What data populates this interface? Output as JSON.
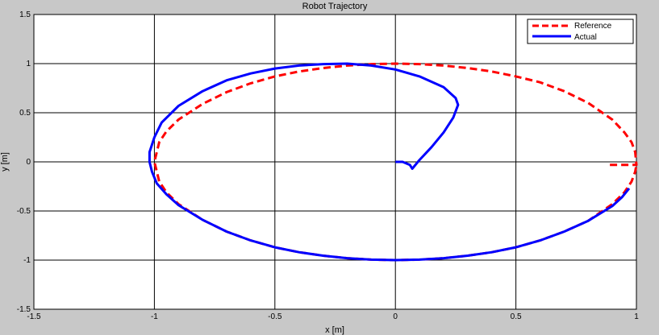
{
  "chart_data": {
    "type": "line",
    "title": "Robot Trajectory",
    "xlabel": "x [m]",
    "ylabel": "y [m]",
    "xlim": [
      -1.5,
      1
    ],
    "ylim": [
      -1.5,
      1.5
    ],
    "xticks": [
      -1.5,
      -1,
      -0.5,
      0,
      0.5,
      1
    ],
    "xtick_labels": [
      "-1.5",
      "-1",
      "-0.5",
      "0",
      "0.5",
      "1"
    ],
    "yticks": [
      -1.5,
      -1,
      -0.5,
      0,
      0.5,
      1,
      1.5
    ],
    "ytick_labels": [
      "-1.5",
      "-1",
      "-0.5",
      "0",
      "0.5",
      "1",
      "1.5"
    ],
    "grid": true,
    "legend_position": "top-right",
    "series": [
      {
        "name": "Reference",
        "color": "#ff0000",
        "style": "dashed",
        "points": [
          [
            0.89,
            -0.03
          ],
          [
            1.0,
            -0.03
          ],
          [
            0.995,
            0.1
          ],
          [
            0.98,
            0.2
          ],
          [
            0.95,
            0.3
          ],
          [
            0.9,
            0.43
          ],
          [
            0.8,
            0.6
          ],
          [
            0.7,
            0.72
          ],
          [
            0.6,
            0.81
          ],
          [
            0.5,
            0.87
          ],
          [
            0.4,
            0.92
          ],
          [
            0.3,
            0.955
          ],
          [
            0.2,
            0.98
          ],
          [
            0.1,
            0.995
          ],
          [
            0.0,
            1.0
          ],
          [
            -0.1,
            0.995
          ],
          [
            -0.2,
            0.98
          ],
          [
            -0.3,
            0.955
          ],
          [
            -0.4,
            0.92
          ],
          [
            -0.5,
            0.87
          ],
          [
            -0.6,
            0.8
          ],
          [
            -0.7,
            0.71
          ],
          [
            -0.8,
            0.59
          ],
          [
            -0.9,
            0.43
          ],
          [
            -0.95,
            0.31
          ],
          [
            -0.98,
            0.2
          ],
          [
            -1.0,
            0.0
          ],
          [
            -0.98,
            -0.2
          ],
          [
            -0.95,
            -0.31
          ],
          [
            -0.9,
            -0.43
          ],
          [
            -0.8,
            -0.59
          ],
          [
            -0.7,
            -0.71
          ],
          [
            -0.6,
            -0.8
          ],
          [
            -0.5,
            -0.87
          ],
          [
            -0.4,
            -0.92
          ],
          [
            -0.3,
            -0.955
          ],
          [
            -0.2,
            -0.98
          ],
          [
            -0.1,
            -0.995
          ],
          [
            0.0,
            -1.0
          ],
          [
            0.1,
            -0.995
          ],
          [
            0.2,
            -0.98
          ],
          [
            0.3,
            -0.955
          ],
          [
            0.4,
            -0.92
          ],
          [
            0.5,
            -0.87
          ],
          [
            0.6,
            -0.8
          ],
          [
            0.7,
            -0.71
          ],
          [
            0.8,
            -0.6
          ],
          [
            0.9,
            -0.43
          ],
          [
            0.95,
            -0.31
          ],
          [
            0.98,
            -0.2
          ],
          [
            0.995,
            -0.1
          ],
          [
            1.0,
            -0.03
          ]
        ]
      },
      {
        "name": "Actual",
        "color": "#0000ff",
        "style": "solid",
        "points": [
          [
            0.0,
            0.0
          ],
          [
            0.03,
            0.0
          ],
          [
            0.06,
            -0.03
          ],
          [
            0.07,
            -0.07
          ],
          [
            0.1,
            0.02
          ],
          [
            0.15,
            0.15
          ],
          [
            0.2,
            0.3
          ],
          [
            0.24,
            0.45
          ],
          [
            0.26,
            0.58
          ],
          [
            0.25,
            0.65
          ],
          [
            0.2,
            0.76
          ],
          [
            0.1,
            0.87
          ],
          [
            0.0,
            0.94
          ],
          [
            -0.1,
            0.98
          ],
          [
            -0.2,
            1.0
          ],
          [
            -0.3,
            0.995
          ],
          [
            -0.4,
            0.98
          ],
          [
            -0.5,
            0.95
          ],
          [
            -0.6,
            0.9
          ],
          [
            -0.7,
            0.83
          ],
          [
            -0.8,
            0.72
          ],
          [
            -0.9,
            0.57
          ],
          [
            -0.97,
            0.4
          ],
          [
            -1.0,
            0.25
          ],
          [
            -1.02,
            0.1
          ],
          [
            -1.02,
            0.0
          ],
          [
            -1.01,
            -0.1
          ],
          [
            -0.99,
            -0.22
          ],
          [
            -0.95,
            -0.33
          ],
          [
            -0.9,
            -0.44
          ],
          [
            -0.8,
            -0.59
          ],
          [
            -0.7,
            -0.71
          ],
          [
            -0.6,
            -0.8
          ],
          [
            -0.5,
            -0.87
          ],
          [
            -0.4,
            -0.92
          ],
          [
            -0.3,
            -0.955
          ],
          [
            -0.2,
            -0.98
          ],
          [
            -0.1,
            -0.995
          ],
          [
            0.0,
            -1.0
          ],
          [
            0.1,
            -0.995
          ],
          [
            0.2,
            -0.98
          ],
          [
            0.3,
            -0.955
          ],
          [
            0.4,
            -0.92
          ],
          [
            0.5,
            -0.87
          ],
          [
            0.6,
            -0.8
          ],
          [
            0.7,
            -0.71
          ],
          [
            0.8,
            -0.6
          ],
          [
            0.9,
            -0.45
          ],
          [
            0.94,
            -0.36
          ],
          [
            0.97,
            -0.27
          ]
        ]
      }
    ]
  }
}
